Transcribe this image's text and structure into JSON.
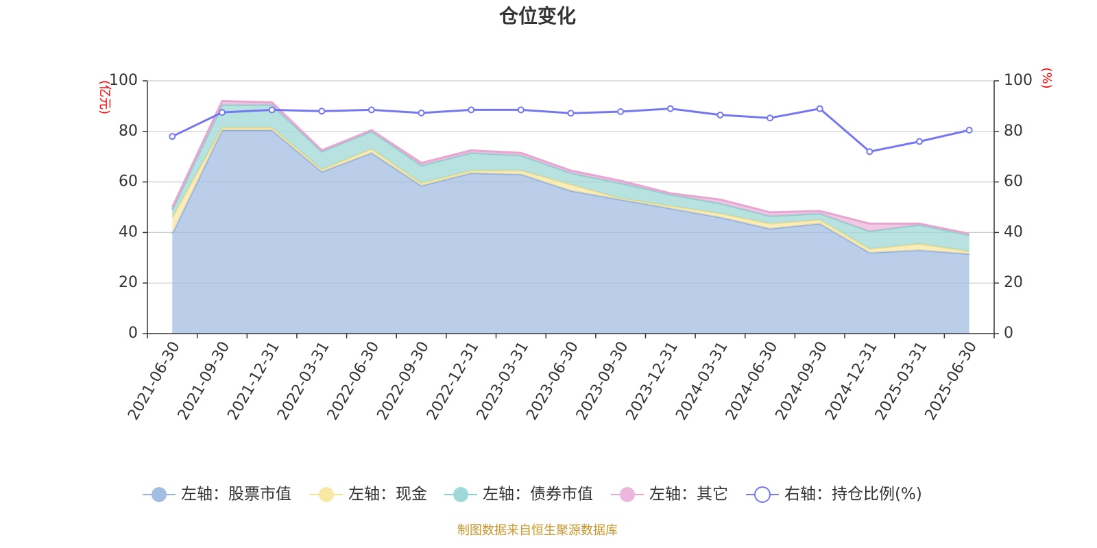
{
  "chart_data": {
    "type": "area",
    "title": "仓位变化",
    "x": [
      "2021-06-30",
      "2021-09-30",
      "2021-12-31",
      "2022-03-31",
      "2022-06-30",
      "2022-09-30",
      "2022-12-31",
      "2023-03-31",
      "2023-06-30",
      "2023-09-30",
      "2023-12-31",
      "2024-03-31",
      "2024-06-30",
      "2024-09-30",
      "2024-12-31",
      "2025-03-31",
      "2025-06-30"
    ],
    "left_axis": {
      "unit_label": "(亿元)",
      "ylim": [
        0,
        100
      ],
      "ticks": [
        "0",
        "20",
        "40",
        "60",
        "80",
        "100"
      ],
      "unit_color": "#ff0000"
    },
    "right_axis": {
      "unit_label": "(%)",
      "ylim": [
        0,
        100
      ],
      "ticks": [
        "0",
        "20",
        "40",
        "60",
        "80",
        "100"
      ],
      "unit_color": "#ff0000"
    },
    "grid": true,
    "stacked": true,
    "legend_position": "bottom",
    "series": [
      {
        "name": "左轴：股票市值",
        "axis": "left",
        "kind": "area",
        "color": "#a3bde3",
        "line_color": "#93b1de",
        "values": [
          39.5,
          80.5,
          80.5,
          64,
          71.5,
          58.5,
          63.5,
          63,
          56.5,
          53,
          49.5,
          46,
          41.5,
          43.5,
          32,
          33,
          31.5
        ]
      },
      {
        "name": "左轴：现金",
        "axis": "left",
        "kind": "area",
        "color": "#f9e7a4",
        "line_color": "#f5e090",
        "values": [
          6.5,
          1,
          1,
          1,
          1.5,
          1,
          1,
          1.5,
          2.5,
          0.5,
          1,
          1.5,
          2,
          1.5,
          1.5,
          2.5,
          1
        ]
      },
      {
        "name": "左轴：债券市值",
        "axis": "left",
        "kind": "area",
        "color": "#9fd8d6",
        "line_color": "#8ccfcd",
        "values": [
          3,
          9,
          9,
          7,
          7,
          7,
          7,
          6,
          4.5,
          6,
          4.5,
          4,
          3,
          2.5,
          7,
          7.5,
          6.5
        ]
      },
      {
        "name": "左轴：其它",
        "axis": "left",
        "kind": "area",
        "color": "#ecb7dc",
        "line_color": "#e6a6d1",
        "values": [
          1,
          1.5,
          1,
          0.5,
          0.5,
          1,
          1,
          1,
          1,
          1,
          0.5,
          1.5,
          1.5,
          1,
          3,
          0.5,
          0.5
        ]
      },
      {
        "name": "右轴：持仓比例(%)",
        "axis": "right",
        "kind": "line",
        "color": "#7577f0",
        "values": [
          78,
          87.5,
          88.5,
          88,
          88.5,
          87.3,
          88.5,
          88.5,
          87.2,
          87.8,
          89,
          86.5,
          85.3,
          89,
          72,
          76,
          80.5
        ]
      }
    ]
  },
  "footer": {
    "source": "制图数据来自恒生聚源数据库"
  }
}
